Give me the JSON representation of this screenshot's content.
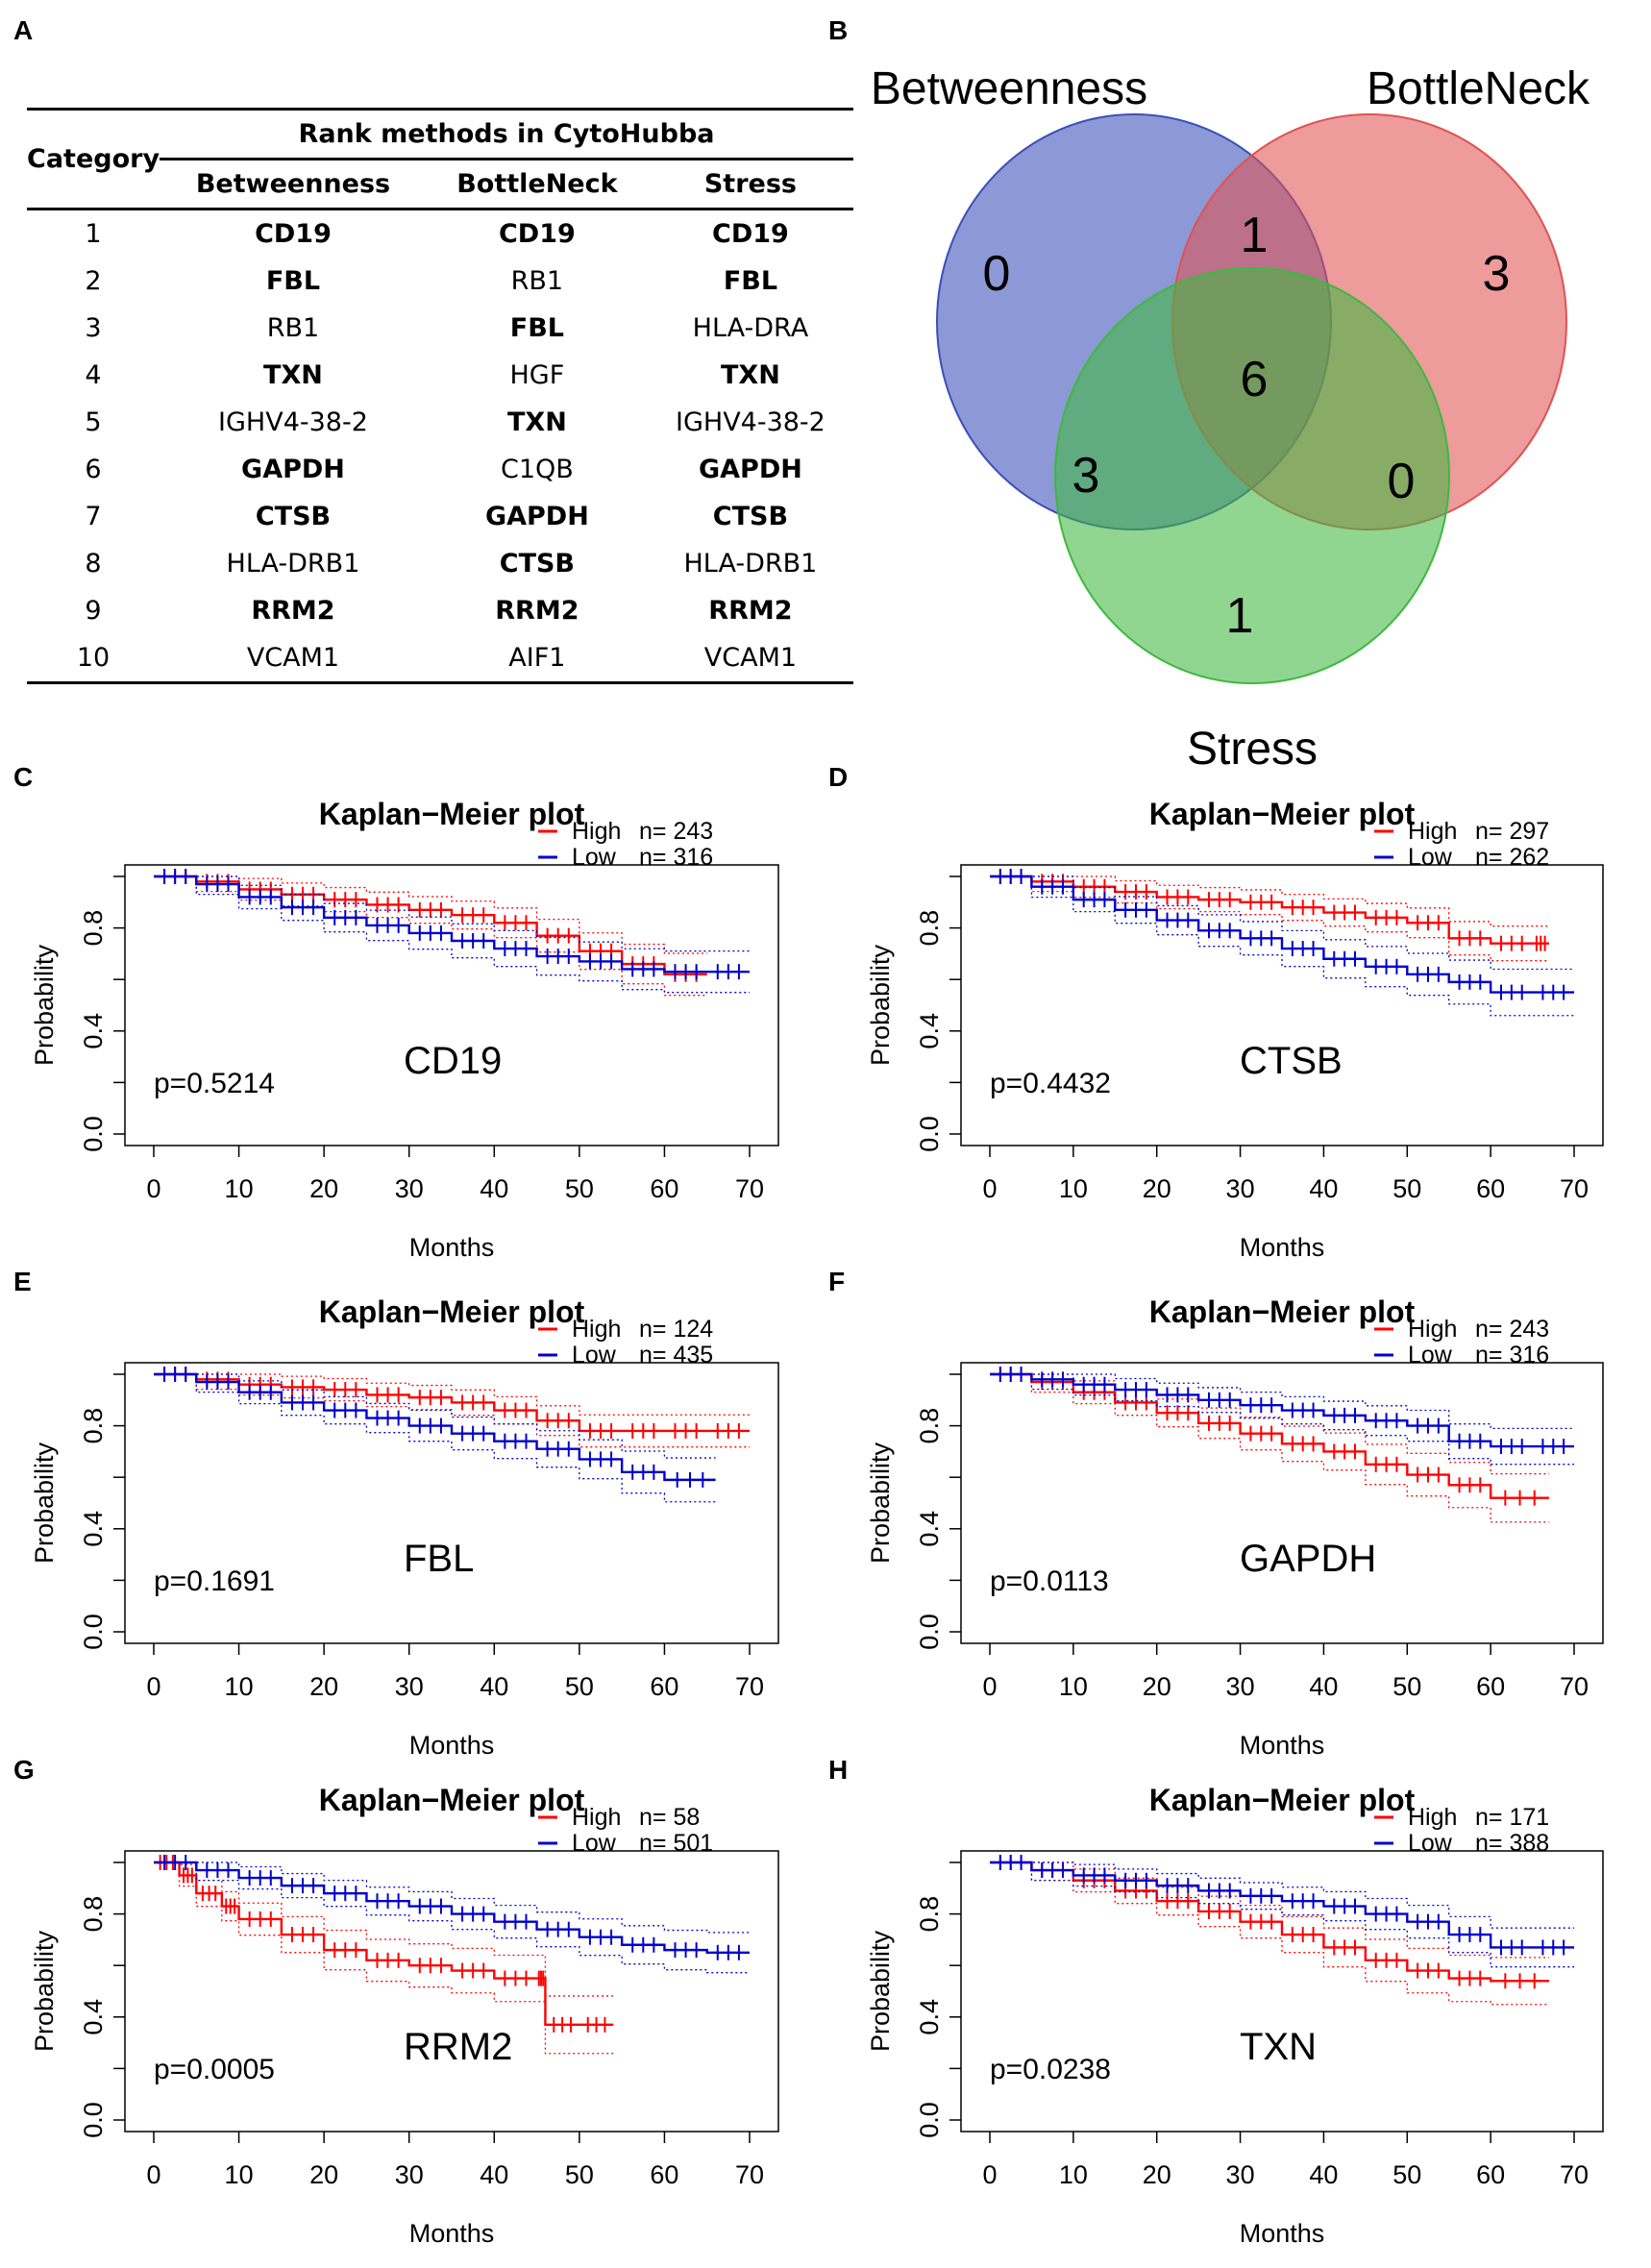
{
  "panel_labels": {
    "a": "A",
    "b": "B",
    "c": "C",
    "d": "D",
    "e": "E",
    "f": "F",
    "g": "G",
    "h": "H"
  },
  "table": {
    "category_header": "Category",
    "group_header": "Rank methods in CytoHubba",
    "columns": [
      "Betweenness",
      "BottleNeck",
      "Stress"
    ],
    "rows": [
      {
        "category": "1",
        "cells": [
          {
            "text": "CD19",
            "bold": true
          },
          {
            "text": "CD19",
            "bold": true
          },
          {
            "text": "CD19",
            "bold": true
          }
        ]
      },
      {
        "category": "2",
        "cells": [
          {
            "text": "FBL",
            "bold": true
          },
          {
            "text": "RB1",
            "bold": false
          },
          {
            "text": "FBL",
            "bold": true
          }
        ]
      },
      {
        "category": "3",
        "cells": [
          {
            "text": "RB1",
            "bold": false
          },
          {
            "text": "FBL",
            "bold": true
          },
          {
            "text": "HLA-DRA",
            "bold": false
          }
        ]
      },
      {
        "category": "4",
        "cells": [
          {
            "text": "TXN",
            "bold": true
          },
          {
            "text": "HGF",
            "bold": false
          },
          {
            "text": "TXN",
            "bold": true
          }
        ]
      },
      {
        "category": "5",
        "cells": [
          {
            "text": "IGHV4-38-2",
            "bold": false
          },
          {
            "text": "TXN",
            "bold": true
          },
          {
            "text": "IGHV4-38-2",
            "bold": false
          }
        ]
      },
      {
        "category": "6",
        "cells": [
          {
            "text": "GAPDH",
            "bold": true
          },
          {
            "text": "C1QB",
            "bold": false
          },
          {
            "text": "GAPDH",
            "bold": true
          }
        ]
      },
      {
        "category": "7",
        "cells": [
          {
            "text": "CTSB",
            "bold": true
          },
          {
            "text": "GAPDH",
            "bold": true
          },
          {
            "text": "CTSB",
            "bold": true
          }
        ]
      },
      {
        "category": "8",
        "cells": [
          {
            "text": "HLA-DRB1",
            "bold": false
          },
          {
            "text": "CTSB",
            "bold": true
          },
          {
            "text": "HLA-DRB1",
            "bold": false
          }
        ]
      },
      {
        "category": "9",
        "cells": [
          {
            "text": "RRM2",
            "bold": true
          },
          {
            "text": "RRM2",
            "bold": true
          },
          {
            "text": "RRM2",
            "bold": true
          }
        ]
      },
      {
        "category": "10",
        "cells": [
          {
            "text": "VCAM1",
            "bold": false
          },
          {
            "text": "AIF1",
            "bold": false
          },
          {
            "text": "VCAM1",
            "bold": false
          }
        ]
      }
    ]
  },
  "venn": {
    "sets": [
      {
        "name": "Betweenness",
        "color": "#3b4fb8"
      },
      {
        "name": "BottleNeck",
        "color": "#e05252"
      },
      {
        "name": "Stress",
        "color": "#3fb840"
      }
    ],
    "regions": {
      "betweenness_only": "0",
      "bottleneck_only": "3",
      "stress_only": "1",
      "betweenness_bottleneck": "1",
      "betweenness_stress": "3",
      "bottleneck_stress": "0",
      "all_three": "6"
    }
  },
  "chart_data": [
    {
      "type": "line",
      "panel": "C",
      "title": "Kaplan−Meier plot",
      "gene": "CD19",
      "p_value": "p=0.5214",
      "xlabel": "Months",
      "ylabel": "Probability",
      "xlim": [
        0,
        70
      ],
      "ylim": [
        0,
        1
      ],
      "xticks": [
        "0",
        "10",
        "20",
        "30",
        "40",
        "50",
        "60",
        "70"
      ],
      "yticks": [
        "0.0",
        "0.4",
        "0.8"
      ],
      "legend": [
        {
          "label": "High",
          "n": "n= 243",
          "color": "#ff0000"
        },
        {
          "label": "Low",
          "n": "n= 316",
          "color": "#0000cc"
        }
      ],
      "series": [
        {
          "name": "High",
          "color": "#ff0000",
          "x": [
            0,
            5,
            10,
            15,
            20,
            25,
            30,
            35,
            40,
            45,
            50,
            55,
            60,
            65
          ],
          "y": [
            1.0,
            0.98,
            0.95,
            0.93,
            0.91,
            0.89,
            0.87,
            0.85,
            0.82,
            0.77,
            0.71,
            0.66,
            0.62,
            0.62
          ]
        },
        {
          "name": "Low",
          "color": "#0000cc",
          "x": [
            0,
            5,
            10,
            15,
            20,
            25,
            30,
            35,
            40,
            45,
            50,
            55,
            60,
            65,
            70
          ],
          "y": [
            1.0,
            0.97,
            0.92,
            0.88,
            0.84,
            0.81,
            0.78,
            0.75,
            0.72,
            0.69,
            0.67,
            0.64,
            0.63,
            0.63,
            0.63
          ]
        }
      ]
    },
    {
      "type": "line",
      "panel": "D",
      "title": "Kaplan−Meier plot",
      "gene": "CTSB",
      "p_value": "p=0.4432",
      "xlabel": "Months",
      "ylabel": "Probability",
      "xlim": [
        0,
        70
      ],
      "ylim": [
        0,
        1
      ],
      "xticks": [
        "0",
        "10",
        "20",
        "30",
        "40",
        "50",
        "60",
        "70"
      ],
      "yticks": [
        "0.0",
        "0.4",
        "0.8"
      ],
      "legend": [
        {
          "label": "High",
          "n": "n= 297",
          "color": "#ff0000"
        },
        {
          "label": "Low",
          "n": "n= 262",
          "color": "#0000cc"
        }
      ],
      "series": [
        {
          "name": "High",
          "color": "#ff0000",
          "x": [
            0,
            5,
            10,
            15,
            20,
            25,
            30,
            35,
            40,
            45,
            50,
            55,
            60,
            65,
            67
          ],
          "y": [
            1.0,
            0.98,
            0.96,
            0.94,
            0.92,
            0.91,
            0.9,
            0.88,
            0.86,
            0.84,
            0.82,
            0.76,
            0.74,
            0.74,
            0.74
          ]
        },
        {
          "name": "Low",
          "color": "#0000cc",
          "x": [
            0,
            5,
            10,
            15,
            20,
            25,
            30,
            35,
            40,
            45,
            50,
            55,
            60,
            65,
            70
          ],
          "y": [
            1.0,
            0.96,
            0.91,
            0.87,
            0.83,
            0.79,
            0.76,
            0.72,
            0.68,
            0.65,
            0.62,
            0.59,
            0.55,
            0.55,
            0.55
          ]
        }
      ]
    },
    {
      "type": "line",
      "panel": "E",
      "title": "Kaplan−Meier plot",
      "gene": "FBL",
      "p_value": "p=0.1691",
      "xlabel": "Months",
      "ylabel": "Probability",
      "xlim": [
        0,
        70
      ],
      "ylim": [
        0,
        1
      ],
      "xticks": [
        "0",
        "10",
        "20",
        "30",
        "40",
        "50",
        "60",
        "70"
      ],
      "yticks": [
        "0.0",
        "0.4",
        "0.8"
      ],
      "legend": [
        {
          "label": "High",
          "n": "n= 124",
          "color": "#ff0000"
        },
        {
          "label": "Low",
          "n": "n= 435",
          "color": "#0000cc"
        }
      ],
      "series": [
        {
          "name": "High",
          "color": "#ff0000",
          "x": [
            0,
            5,
            10,
            15,
            20,
            25,
            30,
            35,
            40,
            45,
            50,
            55,
            60,
            65,
            70
          ],
          "y": [
            1.0,
            0.98,
            0.96,
            0.95,
            0.94,
            0.92,
            0.91,
            0.89,
            0.86,
            0.82,
            0.78,
            0.78,
            0.78,
            0.78,
            0.78
          ]
        },
        {
          "name": "Low",
          "color": "#0000cc",
          "x": [
            0,
            5,
            10,
            15,
            20,
            25,
            30,
            35,
            40,
            45,
            50,
            55,
            60,
            66
          ],
          "y": [
            1.0,
            0.97,
            0.93,
            0.89,
            0.86,
            0.83,
            0.8,
            0.77,
            0.74,
            0.71,
            0.67,
            0.62,
            0.59,
            0.59
          ]
        }
      ]
    },
    {
      "type": "line",
      "panel": "F",
      "title": "Kaplan−Meier plot",
      "gene": "GAPDH",
      "p_value": "p=0.0113",
      "xlabel": "Months",
      "ylabel": "Probability",
      "xlim": [
        0,
        70
      ],
      "ylim": [
        0,
        1
      ],
      "xticks": [
        "0",
        "10",
        "20",
        "30",
        "40",
        "50",
        "60",
        "70"
      ],
      "yticks": [
        "0.0",
        "0.4",
        "0.8"
      ],
      "legend": [
        {
          "label": "High",
          "n": "n= 243",
          "color": "#ff0000"
        },
        {
          "label": "Low",
          "n": "n= 316",
          "color": "#0000cc"
        }
      ],
      "series": [
        {
          "name": "High",
          "color": "#ff0000",
          "x": [
            0,
            5,
            10,
            15,
            20,
            25,
            30,
            35,
            40,
            45,
            50,
            55,
            60,
            67
          ],
          "y": [
            1.0,
            0.97,
            0.93,
            0.89,
            0.85,
            0.81,
            0.77,
            0.73,
            0.7,
            0.65,
            0.61,
            0.57,
            0.52,
            0.52
          ]
        },
        {
          "name": "Low",
          "color": "#0000cc",
          "x": [
            0,
            5,
            10,
            15,
            20,
            25,
            30,
            35,
            40,
            45,
            50,
            55,
            60,
            65,
            70
          ],
          "y": [
            1.0,
            0.98,
            0.96,
            0.94,
            0.92,
            0.9,
            0.88,
            0.86,
            0.84,
            0.82,
            0.8,
            0.74,
            0.72,
            0.72,
            0.72
          ]
        }
      ]
    },
    {
      "type": "line",
      "panel": "G",
      "title": "Kaplan−Meier plot",
      "gene": "RRM2",
      "p_value": "p=0.0005",
      "xlabel": "Months",
      "ylabel": "Probability",
      "xlim": [
        0,
        70
      ],
      "ylim": [
        0,
        1
      ],
      "xticks": [
        "0",
        "10",
        "20",
        "30",
        "40",
        "50",
        "60",
        "70"
      ],
      "yticks": [
        "0.0",
        "0.4",
        "0.8"
      ],
      "legend": [
        {
          "label": "High",
          "n": "n= 58",
          "color": "#ff0000"
        },
        {
          "label": "Low",
          "n": "n= 501",
          "color": "#0000cc"
        }
      ],
      "series": [
        {
          "name": "High",
          "color": "#ff0000",
          "x": [
            0,
            3,
            5,
            8,
            10,
            15,
            20,
            25,
            30,
            35,
            40,
            45,
            46,
            50,
            54
          ],
          "y": [
            1.0,
            0.95,
            0.88,
            0.83,
            0.78,
            0.72,
            0.66,
            0.62,
            0.6,
            0.58,
            0.55,
            0.55,
            0.37,
            0.37,
            0.37
          ]
        },
        {
          "name": "Low",
          "color": "#0000cc",
          "x": [
            0,
            5,
            10,
            15,
            20,
            25,
            30,
            35,
            40,
            45,
            50,
            55,
            60,
            65,
            70
          ],
          "y": [
            1.0,
            0.97,
            0.94,
            0.91,
            0.88,
            0.85,
            0.83,
            0.8,
            0.77,
            0.74,
            0.71,
            0.68,
            0.66,
            0.65,
            0.65
          ]
        }
      ]
    },
    {
      "type": "line",
      "panel": "H",
      "title": "Kaplan−Meier plot",
      "gene": "TXN",
      "p_value": "p=0.0238",
      "xlabel": "Months",
      "ylabel": "Probability",
      "xlim": [
        0,
        70
      ],
      "ylim": [
        0,
        1
      ],
      "xticks": [
        "0",
        "10",
        "20",
        "30",
        "40",
        "50",
        "60",
        "70"
      ],
      "yticks": [
        "0.0",
        "0.4",
        "0.8"
      ],
      "legend": [
        {
          "label": "High",
          "n": "n= 171",
          "color": "#ff0000"
        },
        {
          "label": "Low",
          "n": "n= 388",
          "color": "#0000cc"
        }
      ],
      "series": [
        {
          "name": "High",
          "color": "#ff0000",
          "x": [
            0,
            5,
            10,
            15,
            20,
            25,
            30,
            35,
            40,
            45,
            50,
            55,
            60,
            67
          ],
          "y": [
            1.0,
            0.97,
            0.93,
            0.89,
            0.85,
            0.81,
            0.77,
            0.72,
            0.67,
            0.62,
            0.58,
            0.55,
            0.54,
            0.54
          ]
        },
        {
          "name": "Low",
          "color": "#0000cc",
          "x": [
            0,
            5,
            10,
            15,
            20,
            25,
            30,
            35,
            40,
            45,
            50,
            55,
            60,
            65,
            70
          ],
          "y": [
            1.0,
            0.97,
            0.95,
            0.93,
            0.91,
            0.89,
            0.87,
            0.85,
            0.83,
            0.8,
            0.77,
            0.72,
            0.67,
            0.67,
            0.67
          ]
        }
      ]
    }
  ]
}
